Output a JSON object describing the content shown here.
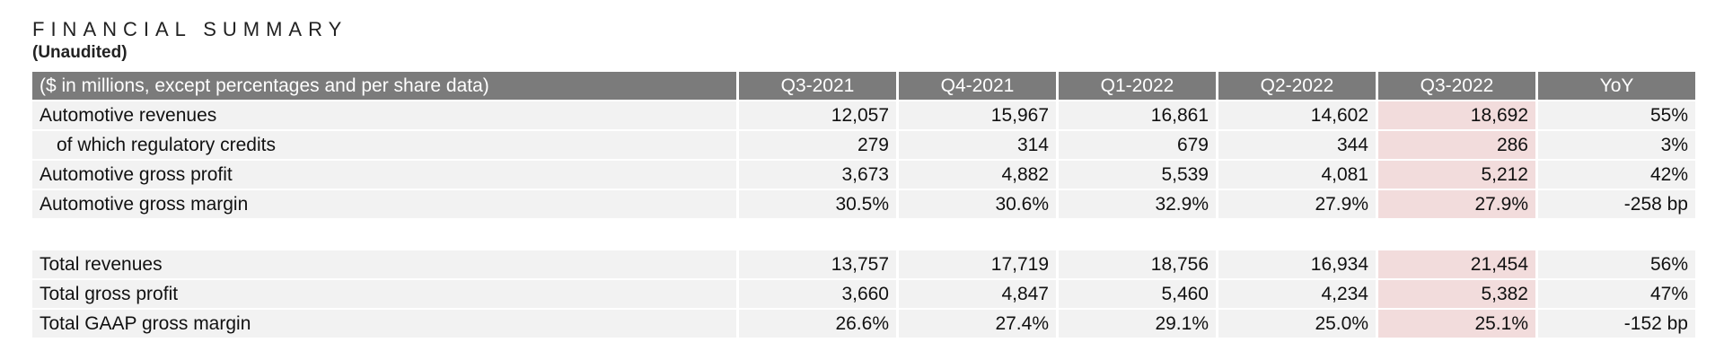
{
  "title": "FINANCIAL SUMMARY",
  "subtitle": "(Unaudited)",
  "highlight_color": "#f2dcdc",
  "header_color": "#7b7b7b",
  "table": {
    "corner_label": "($ in millions, except percentages and per share data)",
    "columns": [
      "Q3-2021",
      "Q4-2021",
      "Q1-2022",
      "Q2-2022",
      "Q3-2022",
      "YoY"
    ],
    "highlighted_column": "Q3-2022",
    "section1": [
      {
        "label": "Automotive revenues",
        "values": [
          "12,057",
          "15,967",
          "16,861",
          "14,602",
          "18,692",
          "55%"
        ]
      },
      {
        "label": "of which regulatory credits",
        "values": [
          "279",
          "314",
          "679",
          "344",
          "286",
          "3%"
        ]
      },
      {
        "label": "Automotive gross profit",
        "values": [
          "3,673",
          "4,882",
          "5,539",
          "4,081",
          "5,212",
          "42%"
        ]
      },
      {
        "label": "Automotive gross margin",
        "values": [
          "30.5%",
          "30.6%",
          "32.9%",
          "27.9%",
          "27.9%",
          "-258 bp"
        ]
      }
    ],
    "section2": [
      {
        "label": "Total revenues",
        "values": [
          "13,757",
          "17,719",
          "18,756",
          "16,934",
          "21,454",
          "56%"
        ]
      },
      {
        "label": "Total gross profit",
        "values": [
          "3,660",
          "4,847",
          "5,460",
          "4,234",
          "5,382",
          "47%"
        ]
      },
      {
        "label": "Total GAAP gross margin",
        "values": [
          "26.6%",
          "27.4%",
          "29.1%",
          "25.0%",
          "25.1%",
          "-152 bp"
        ]
      }
    ]
  }
}
